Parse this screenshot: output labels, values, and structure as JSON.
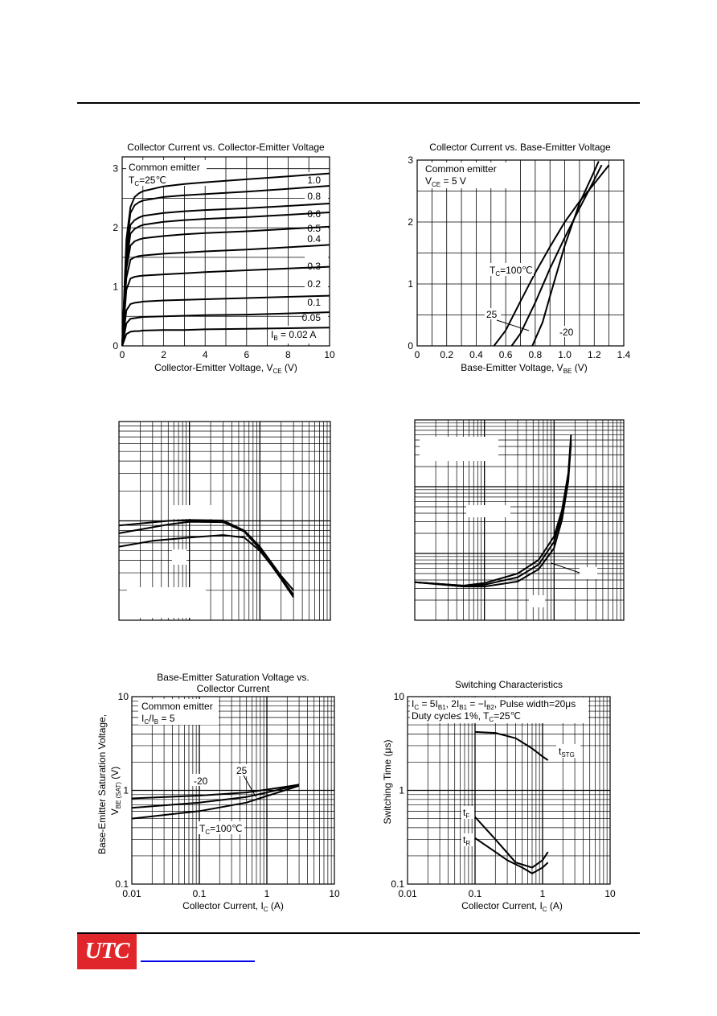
{
  "logo": {
    "text": "UTC",
    "brand_color": "#e0262b"
  },
  "link_color": "#0000ee",
  "chart_data": [
    {
      "id": "c1",
      "type": "line",
      "title": "Collector Current vs. Collector-Emitter Voltage",
      "xlabel": "Collector-Emitter Voltage, VCE (V)",
      "ylabel": "",
      "xlim": [
        0,
        10
      ],
      "ylim": [
        0,
        3.2
      ],
      "xticks": [
        0,
        2,
        4,
        6,
        8,
        10
      ],
      "yticks": [
        0,
        1,
        2,
        3
      ],
      "annotations": [
        "Common emitter",
        "TC=25℃"
      ],
      "series": [
        {
          "name": "1.0",
          "x": [
            0,
            0.2,
            0.4,
            0.6,
            0.8,
            1,
            2,
            3,
            4,
            6,
            8,
            10
          ],
          "y": [
            0,
            1.8,
            2.35,
            2.52,
            2.58,
            2.62,
            2.7,
            2.74,
            2.77,
            2.82,
            2.87,
            2.92
          ]
        },
        {
          "name": "0.8",
          "x": [
            0,
            0.2,
            0.4,
            0.6,
            0.8,
            1,
            2,
            3,
            4,
            6,
            8,
            10
          ],
          "y": [
            0,
            1.7,
            2.25,
            2.38,
            2.43,
            2.46,
            2.52,
            2.55,
            2.57,
            2.61,
            2.66,
            2.71
          ]
        },
        {
          "name": "0.6",
          "x": [
            0,
            0.2,
            0.4,
            0.6,
            0.8,
            1,
            2,
            3,
            4,
            6,
            8,
            10
          ],
          "y": [
            0,
            1.55,
            2.05,
            2.13,
            2.17,
            2.2,
            2.25,
            2.28,
            2.3,
            2.33,
            2.37,
            2.41
          ]
        },
        {
          "name": "0.5",
          "x": [
            0,
            0.2,
            0.4,
            0.6,
            0.8,
            1,
            2,
            3,
            4,
            6,
            8,
            10
          ],
          "y": [
            0,
            1.4,
            1.9,
            1.98,
            2.02,
            2.05,
            2.1,
            2.13,
            2.15,
            2.18,
            2.22,
            2.26
          ]
        },
        {
          "name": "0.4",
          "x": [
            0,
            0.2,
            0.4,
            0.6,
            0.8,
            1,
            2,
            3,
            4,
            6,
            8,
            10
          ],
          "y": [
            0,
            1.3,
            1.7,
            1.77,
            1.8,
            1.82,
            1.86,
            1.89,
            1.91,
            1.94,
            1.98,
            2.02
          ]
        },
        {
          "name": "0.3",
          "x": [
            0,
            0.2,
            0.4,
            0.6,
            0.8,
            1,
            2,
            3,
            4,
            6,
            8,
            10
          ],
          "y": [
            0,
            1.15,
            1.46,
            1.5,
            1.52,
            1.53,
            1.56,
            1.58,
            1.6,
            1.63,
            1.67,
            1.71
          ]
        },
        {
          "name": "0.2",
          "x": [
            0,
            0.2,
            0.4,
            0.6,
            0.8,
            1,
            2,
            3,
            4,
            6,
            8,
            10
          ],
          "y": [
            0,
            0.95,
            1.14,
            1.17,
            1.18,
            1.19,
            1.21,
            1.23,
            1.25,
            1.28,
            1.31,
            1.34
          ]
        },
        {
          "name": "0.1",
          "x": [
            0,
            0.2,
            0.4,
            0.6,
            0.8,
            1,
            2,
            3,
            4,
            6,
            8,
            10
          ],
          "y": [
            0,
            0.6,
            0.71,
            0.73,
            0.74,
            0.75,
            0.77,
            0.78,
            0.79,
            0.81,
            0.83,
            0.85
          ]
        },
        {
          "name": "0.05",
          "x": [
            0,
            0.2,
            0.4,
            0.6,
            0.8,
            1,
            2,
            3,
            4,
            6,
            8,
            10
          ],
          "y": [
            0,
            0.38,
            0.46,
            0.47,
            0.48,
            0.49,
            0.5,
            0.51,
            0.52,
            0.53,
            0.55,
            0.57
          ]
        },
        {
          "name": "IB = 0.02 A",
          "x": [
            0,
            0.2,
            0.4,
            0.6,
            0.8,
            1,
            2,
            3,
            4,
            6,
            8,
            10
          ],
          "y": [
            0,
            0.2,
            0.24,
            0.25,
            0.25,
            0.26,
            0.27,
            0.27,
            0.28,
            0.29,
            0.3,
            0.31
          ]
        }
      ]
    },
    {
      "id": "c2",
      "type": "line",
      "title": "Collector Current vs.  Base-Emitter Voltage",
      "xlabel": "Base-Emitter Voltage,  VBE (V)",
      "ylabel": "",
      "xlim": [
        0,
        1.4
      ],
      "ylim": [
        0,
        3
      ],
      "xticks": [
        0,
        0.2,
        0.4,
        0.6,
        0.8,
        1.0,
        1.2,
        1.4
      ],
      "yticks": [
        0,
        1,
        2,
        3
      ],
      "annotations": [
        "Common emitter",
        "VCE = 5 V"
      ],
      "series": [
        {
          "name": "TC=100℃",
          "x": [
            0.52,
            0.6,
            0.7,
            0.8,
            0.9,
            1.0,
            1.1,
            1.2,
            1.3
          ],
          "y": [
            0,
            0.25,
            0.72,
            1.18,
            1.6,
            2.0,
            2.33,
            2.62,
            2.92
          ]
        },
        {
          "name": "25",
          "x": [
            0.64,
            0.7,
            0.8,
            0.9,
            1.0,
            1.1,
            1.2,
            1.25
          ],
          "y": [
            0,
            0.2,
            0.7,
            1.25,
            1.75,
            2.22,
            2.68,
            2.92
          ]
        },
        {
          "name": "-20",
          "x": [
            0.78,
            0.85,
            0.9,
            1.0,
            1.1,
            1.2,
            1.23
          ],
          "y": [
            0,
            0.38,
            0.8,
            1.62,
            2.3,
            2.82,
            2.98
          ]
        }
      ]
    },
    {
      "id": "c3",
      "type": "line",
      "title": "",
      "xlabel": "",
      "ylabel": "",
      "xscale": "log",
      "yscale": "log",
      "xlim": [
        0.01,
        10
      ],
      "ylim": [
        10,
        1000
      ],
      "series": [
        {
          "x": [
            0.01,
            0.05,
            0.1,
            0.3,
            0.6,
            1,
            2,
            3
          ],
          "y": [
            90,
            100,
            102,
            101,
            80,
            55,
            28,
            20
          ]
        },
        {
          "x": [
            0.01,
            0.05,
            0.1,
            0.3,
            0.6,
            1,
            2,
            3
          ],
          "y": [
            75,
            92,
            98,
            97,
            78,
            52,
            26,
            17
          ]
        },
        {
          "x": [
            0.01,
            0.03,
            0.1,
            0.3,
            0.6,
            1,
            2,
            3
          ],
          "y": [
            55,
            63,
            68,
            72,
            68,
            50,
            27,
            18
          ]
        }
      ]
    },
    {
      "id": "c4",
      "type": "line",
      "title": "",
      "xlabel": "",
      "ylabel": "",
      "xscale": "log",
      "yscale": "log",
      "xlim": [
        0.01,
        10
      ],
      "ylim": [
        0.01,
        10
      ],
      "series": [
        {
          "x": [
            0.01,
            0.05,
            0.1,
            0.3,
            0.6,
            1,
            1.3,
            1.6,
            1.75
          ],
          "y": [
            0.037,
            0.033,
            0.036,
            0.05,
            0.08,
            0.18,
            0.45,
            1.6,
            6
          ]
        },
        {
          "x": [
            0.01,
            0.05,
            0.1,
            0.3,
            0.6,
            1,
            1.3,
            1.6,
            1.75
          ],
          "y": [
            0.037,
            0.033,
            0.034,
            0.044,
            0.068,
            0.15,
            0.38,
            1.4,
            5
          ]
        },
        {
          "x": [
            0.01,
            0.05,
            0.1,
            0.3,
            0.6,
            1,
            1.3,
            1.6,
            1.75
          ],
          "y": [
            0.037,
            0.032,
            0.032,
            0.038,
            0.058,
            0.12,
            0.32,
            1.2,
            4.5
          ]
        }
      ]
    },
    {
      "id": "c5",
      "type": "line",
      "title": "Base-Emitter Saturation Voltage vs. Collector Current",
      "title_lines": [
        "Base-Emitter Saturation Voltage vs.",
        "Collector Current"
      ],
      "xlabel": "Collector Current, IC (A)",
      "ylabel": "Base-Emitter Saturation Voltage, VBE (SAT) (V)",
      "xscale": "log",
      "yscale": "log",
      "xlim": [
        0.01,
        10
      ],
      "ylim": [
        0.1,
        10
      ],
      "xticks": [
        0.01,
        0.1,
        1,
        10
      ],
      "yticks": [
        0.1,
        1,
        10
      ],
      "xtick_labels": [
        "0.01",
        "0.1",
        "1",
        "10"
      ],
      "ytick_labels": [
        "0.1",
        "1",
        "10"
      ],
      "annotations": [
        "Common emitter",
        "IC/IB = 5"
      ],
      "series": [
        {
          "name": "-20",
          "x": [
            0.01,
            0.1,
            0.5,
            1,
            2,
            3
          ],
          "y": [
            0.82,
            0.88,
            0.95,
            1.02,
            1.1,
            1.15
          ]
        },
        {
          "name": "25",
          "x": [
            0.01,
            0.1,
            0.5,
            1,
            2,
            3
          ],
          "y": [
            0.65,
            0.74,
            0.85,
            0.95,
            1.07,
            1.15
          ]
        },
        {
          "name": "TC=100℃",
          "x": [
            0.01,
            0.1,
            0.5,
            1,
            2,
            3
          ],
          "y": [
            0.5,
            0.6,
            0.74,
            0.87,
            1.02,
            1.12
          ]
        }
      ]
    },
    {
      "id": "c6",
      "type": "line",
      "title": "Switching Characteristics",
      "xlabel": "Collector Current, IC (A)",
      "ylabel": "Switching Time (μs)",
      "xscale": "log",
      "yscale": "log",
      "xlim": [
        0.01,
        10
      ],
      "ylim": [
        0.1,
        10
      ],
      "xticks": [
        0.01,
        0.1,
        1,
        10
      ],
      "yticks": [
        0.1,
        1,
        10
      ],
      "xtick_labels": [
        "0.01",
        "0.1",
        "1",
        "10"
      ],
      "ytick_labels": [
        "0.1",
        "1",
        "10"
      ],
      "annotations": [
        "IC = 5IB1, 2IB1 = −IB2, Pulse width=20μs",
        "Duty cycle≤ 1%, TC=25℃"
      ],
      "series": [
        {
          "name": "tSTG",
          "x": [
            0.1,
            0.2,
            0.4,
            0.7,
            1.0,
            1.2
          ],
          "y": [
            4.2,
            4.1,
            3.6,
            2.8,
            2.3,
            2.1
          ]
        },
        {
          "name": "tF",
          "x": [
            0.1,
            0.2,
            0.4,
            0.7,
            1.0,
            1.2
          ],
          "y": [
            0.52,
            0.3,
            0.17,
            0.15,
            0.18,
            0.22
          ]
        },
        {
          "name": "tR",
          "x": [
            0.1,
            0.2,
            0.3,
            0.5,
            0.7,
            1.0,
            1.2
          ],
          "y": [
            0.31,
            0.22,
            0.18,
            0.15,
            0.13,
            0.15,
            0.17
          ]
        }
      ]
    }
  ]
}
